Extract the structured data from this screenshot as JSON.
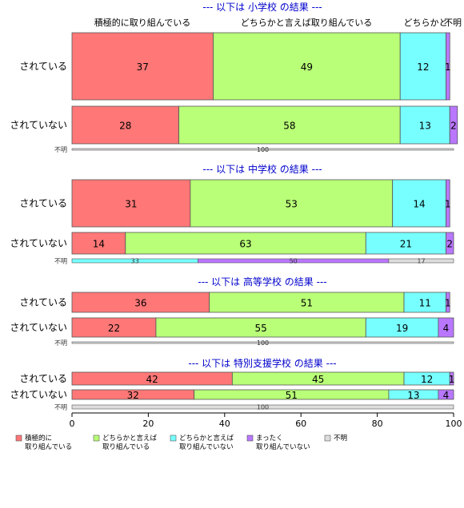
{
  "chart_data": {
    "type": "bar",
    "orientation": "horizontal",
    "stacked": true,
    "column_headers": [
      "積極的に取り組んでいる",
      "どちらかと言えば取り組んでいる",
      "どちらかと"
    ],
    "column_header_overlap": "不明",
    "x_ticks": [
      "0",
      "20",
      "40",
      "60",
      "80",
      "100"
    ],
    "xlim": [
      0,
      100
    ],
    "legend": [
      {
        "key": "sekkyoku",
        "label": [
          "積極的に",
          "取り組んでいる"
        ],
        "color": "#ff7777"
      },
      {
        "key": "dochira_yes",
        "label": [
          "どちらかと言えば",
          "取り組んでいる"
        ],
        "color": "#b9ff77"
      },
      {
        "key": "dochira_no",
        "label": [
          "どちらかと言えば",
          "取り組んでいない"
        ],
        "color": "#77ffff"
      },
      {
        "key": "mattaku",
        "label": [
          "まったく",
          "取り組んでいない"
        ],
        "color": "#b977ff"
      },
      {
        "key": "fumei",
        "label": [
          "不明"
        ],
        "color": "#dddddd"
      }
    ],
    "panels": [
      {
        "title": "--- 以下は 小学校 の結果 ---",
        "rows": [
          {
            "label": "されている",
            "size": "large",
            "values": [
              37,
              49,
              12,
              1,
              0
            ],
            "labels": [
              "37",
              "49",
              "12",
              "1",
              ""
            ]
          },
          {
            "label": "されていない",
            "size": "medium",
            "values": [
              28,
              58,
              13,
              2,
              0
            ],
            "labels": [
              "28",
              "58",
              "13",
              "2",
              ""
            ]
          },
          {
            "label": "不明",
            "size": "thin",
            "values": [
              0,
              0,
              0,
              0,
              100
            ],
            "labels": [
              "",
              "",
              "",
              "",
              "100"
            ]
          }
        ]
      },
      {
        "title": "--- 以下は 中学校 の結果 ---",
        "rows": [
          {
            "label": "されている",
            "size": "large",
            "values": [
              31,
              53,
              14,
              1,
              0
            ],
            "labels": [
              "31",
              "53",
              "14",
              "1",
              ""
            ]
          },
          {
            "label": "されていない",
            "size": "medium",
            "values": [
              14,
              63,
              21,
              2,
              0
            ],
            "labels": [
              "14",
              "63",
              "21",
              "2",
              ""
            ]
          },
          {
            "label": "不明",
            "size": "thin",
            "values": [
              0,
              0,
              33,
              50,
              17
            ],
            "labels": [
              "",
              "",
              "33",
              "50",
              "17"
            ]
          }
        ]
      },
      {
        "title": "--- 以下は 高等学校 の結果 ---",
        "rows": [
          {
            "label": "されている",
            "size": "medium",
            "values": [
              36,
              51,
              11,
              1,
              0
            ],
            "labels": [
              "36",
              "51",
              "11",
              "1",
              ""
            ]
          },
          {
            "label": "されていない",
            "size": "medium",
            "values": [
              22,
              55,
              19,
              4,
              0
            ],
            "labels": [
              "22",
              "55",
              "19",
              "4",
              ""
            ]
          },
          {
            "label": "不明",
            "size": "thin",
            "values": [
              0,
              0,
              0,
              0,
              100
            ],
            "labels": [
              "",
              "",
              "",
              "",
              "100"
            ]
          }
        ]
      },
      {
        "title": "--- 以下は 特別支援学校 の結果 ---",
        "rows": [
          {
            "label": "されている",
            "size": "small",
            "values": [
              42,
              45,
              12,
              1,
              0
            ],
            "labels": [
              "42",
              "45",
              "12",
              "1",
              ""
            ]
          },
          {
            "label": "されていない",
            "size": "small",
            "values": [
              32,
              51,
              13,
              4,
              0
            ],
            "labels": [
              "32",
              "51",
              "13",
              "4",
              ""
            ]
          },
          {
            "label": "不明",
            "size": "thin",
            "values": [
              0,
              0,
              0,
              0,
              100
            ],
            "labels": [
              "",
              "",
              "",
              "",
              "100"
            ]
          }
        ]
      }
    ]
  }
}
